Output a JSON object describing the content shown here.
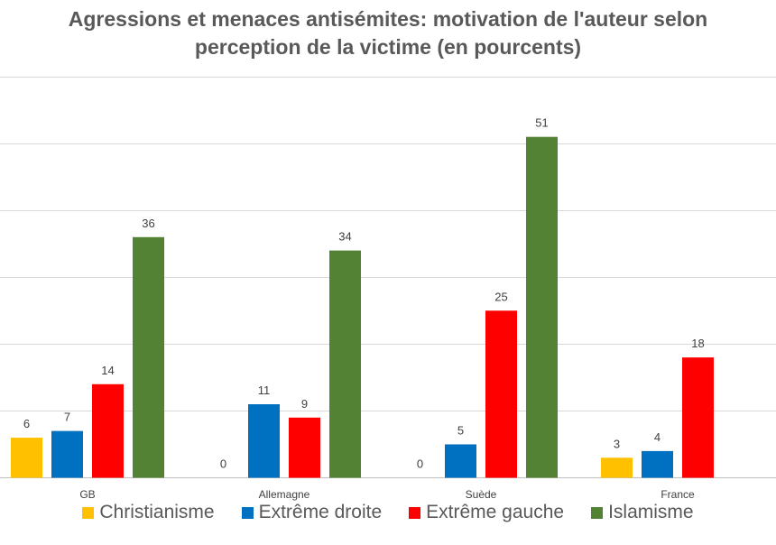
{
  "chart_data": {
    "type": "bar",
    "title_line1": "Agressions et menaces antisémites: motivation de l'auteur selon",
    "title_line2": "perception de la victime (en pourcents)",
    "categories": [
      "GB",
      "Allemagne",
      "Suède",
      "France"
    ],
    "series": [
      {
        "name": "Christianisme",
        "color": "#FFC000",
        "values": [
          6,
          0,
          0,
          3
        ]
      },
      {
        "name": "Extrême droite",
        "color": "#0070C0",
        "values": [
          7,
          11,
          5,
          4
        ]
      },
      {
        "name": "Extrême gauche",
        "color": "#FF0000",
        "values": [
          14,
          9,
          25,
          18
        ]
      },
      {
        "name": "Islamisme",
        "color": "#548235",
        "values": [
          36,
          34,
          51,
          null
        ]
      }
    ],
    "ylim": [
      0,
      60
    ],
    "gridlines": [
      10,
      20,
      30,
      40,
      50,
      60
    ],
    "grid": true,
    "legend_position": "bottom"
  }
}
